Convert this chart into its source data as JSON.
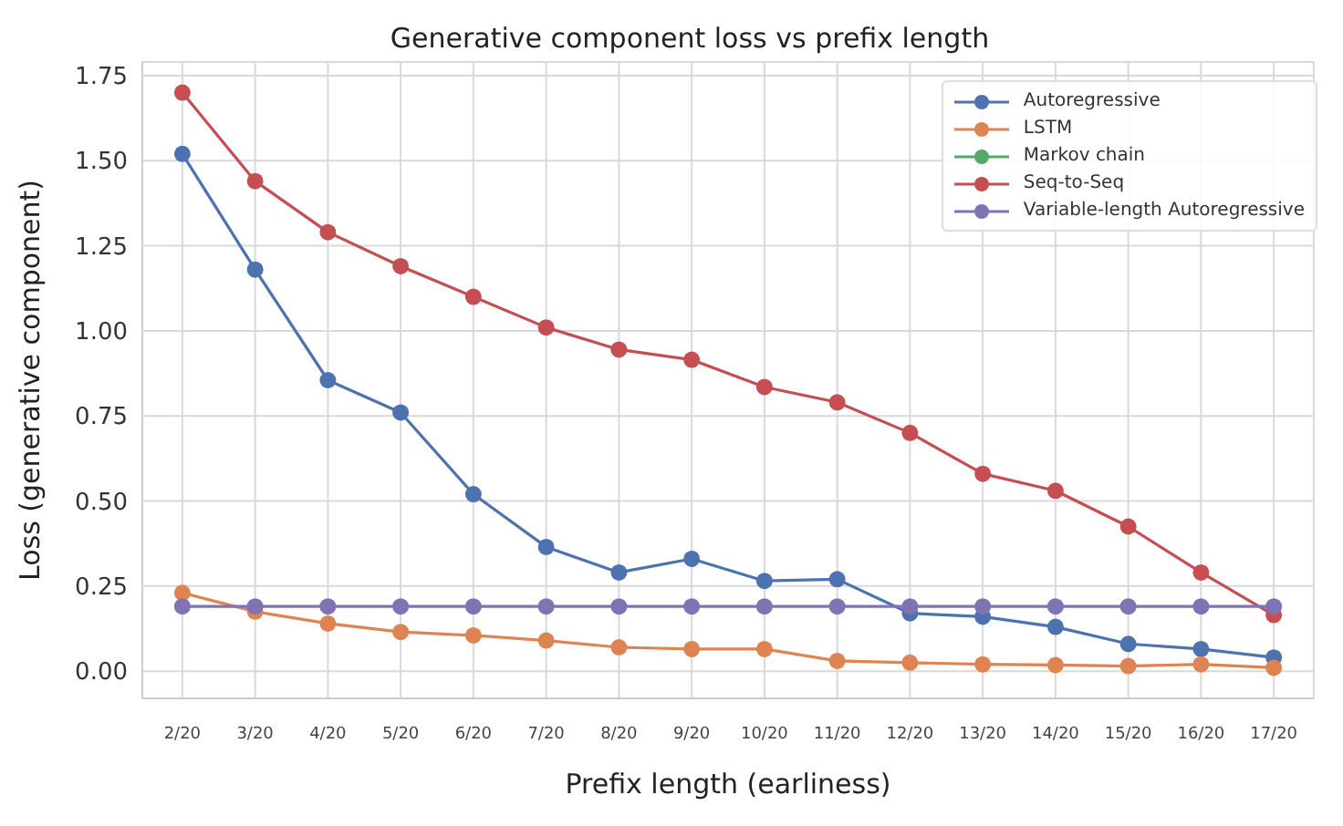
{
  "chart_data": {
    "type": "line",
    "title": "Generative component loss vs prefix length",
    "xlabel": "Prefix length (earliness)",
    "ylabel": "Loss (generative component)",
    "categories": [
      "2/20",
      "3/20",
      "4/20",
      "5/20",
      "6/20",
      "7/20",
      "8/20",
      "9/20",
      "10/20",
      "11/20",
      "12/20",
      "13/20",
      "14/20",
      "15/20",
      "16/20",
      "17/20"
    ],
    "series": [
      {
        "name": "Autoregressive",
        "color": "#4c72b0",
        "values": [
          1.52,
          1.18,
          0.855,
          0.76,
          0.52,
          0.365,
          0.29,
          0.33,
          0.265,
          0.27,
          0.17,
          0.16,
          0.13,
          0.08,
          0.065,
          0.04
        ]
      },
      {
        "name": "LSTM",
        "color": "#dd8452",
        "values": [
          0.23,
          0.175,
          0.14,
          0.115,
          0.105,
          0.09,
          0.07,
          0.065,
          0.065,
          0.03,
          0.025,
          0.02,
          0.018,
          0.015,
          0.02,
          0.01
        ]
      },
      {
        "name": "Markov chain",
        "color": "#55a868",
        "values": [
          null,
          null,
          null,
          null,
          null,
          null,
          null,
          null,
          null,
          null,
          null,
          null,
          null,
          null,
          null,
          null
        ]
      },
      {
        "name": "Seq-to-Seq",
        "color": "#c44e52",
        "values": [
          1.7,
          1.44,
          1.29,
          1.19,
          1.1,
          1.01,
          0.945,
          0.915,
          0.835,
          0.79,
          0.7,
          0.58,
          0.53,
          0.425,
          0.29,
          0.165
        ]
      },
      {
        "name": "Variable-length Autoregressive",
        "color": "#8172b3",
        "values": [
          0.19,
          0.19,
          0.19,
          0.19,
          0.19,
          0.19,
          0.19,
          0.19,
          0.19,
          0.19,
          0.19,
          0.19,
          0.19,
          0.19,
          0.19,
          0.19
        ]
      }
    ],
    "ylim": [
      -0.08,
      1.79
    ],
    "yticks": [
      {
        "value": 0,
        "label": "0.00"
      },
      {
        "value": 0.25,
        "label": "0.25"
      },
      {
        "value": 0.5,
        "label": "0.50"
      },
      {
        "value": 0.75,
        "label": "0.75"
      },
      {
        "value": 1,
        "label": "1.00"
      },
      {
        "value": 1.25,
        "label": "1.25"
      },
      {
        "value": 1.5,
        "label": "1.50"
      },
      {
        "value": 1.75,
        "label": "1.75"
      }
    ],
    "grid": true,
    "legend": "top right",
    "marker": "circle",
    "line_style": "solid"
  }
}
